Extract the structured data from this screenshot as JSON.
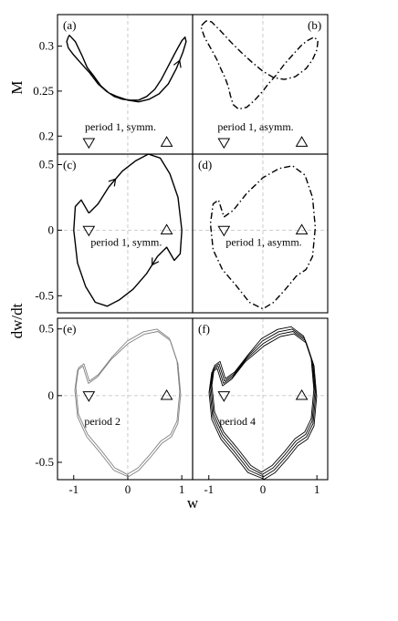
{
  "figure": {
    "x_label": "w",
    "y_label_top": "M",
    "y_label_bottom": "dw/dt"
  },
  "chart_data": [
    {
      "id": "a",
      "type": "line",
      "panel_label": "(a)",
      "caption": "period 1, symm.",
      "xlim": [
        -1.3,
        1.2
      ],
      "ylim": [
        0.18,
        0.335
      ],
      "yticks": [
        0.2,
        0.25,
        0.3
      ],
      "ytick_labels": [
        "0.2",
        "0.25",
        "0.3"
      ],
      "xticks": [],
      "style": "solid",
      "line_color": "#000000",
      "dashed_zero_lines": true,
      "markers": [
        {
          "symbol": "down-triangle",
          "x": -0.72,
          "y": 0.193
        },
        {
          "symbol": "up-triangle",
          "x": 0.72,
          "y": 0.193
        }
      ],
      "arrows": [
        {
          "at_index": 20,
          "direction": "backward"
        }
      ],
      "series": [
        {
          "repeat": 1,
          "points": [
            [
              -1.1,
              0.31
            ],
            [
              -1.13,
              0.305
            ],
            [
              -1.1,
              0.298
            ],
            [
              -1.0,
              0.29
            ],
            [
              -0.85,
              0.28
            ],
            [
              -0.7,
              0.27
            ],
            [
              -0.55,
              0.258
            ],
            [
              -0.4,
              0.25
            ],
            [
              -0.25,
              0.244
            ],
            [
              -0.1,
              0.241
            ],
            [
              0.05,
              0.24
            ],
            [
              0.2,
              0.24
            ],
            [
              0.35,
              0.244
            ],
            [
              0.5,
              0.252
            ],
            [
              0.62,
              0.263
            ],
            [
              0.75,
              0.278
            ],
            [
              0.88,
              0.293
            ],
            [
              1.0,
              0.306
            ],
            [
              1.06,
              0.31
            ],
            [
              1.08,
              0.305
            ],
            [
              1.02,
              0.293
            ],
            [
              0.9,
              0.275
            ],
            [
              0.75,
              0.258
            ],
            [
              0.58,
              0.247
            ],
            [
              0.4,
              0.241
            ],
            [
              0.2,
              0.238
            ],
            [
              0.0,
              0.24
            ],
            [
              -0.2,
              0.244
            ],
            [
              -0.35,
              0.248
            ],
            [
              -0.5,
              0.256
            ],
            [
              -0.62,
              0.266
            ],
            [
              -0.75,
              0.276
            ],
            [
              -0.85,
              0.29
            ],
            [
              -0.97,
              0.305
            ],
            [
              -1.08,
              0.312
            ],
            [
              -1.1,
              0.31
            ]
          ]
        }
      ]
    },
    {
      "id": "b",
      "type": "line",
      "panel_label": "(b)",
      "caption": "period 1, asymm.",
      "xlim": [
        -1.3,
        1.2
      ],
      "ylim": [
        0.18,
        0.335
      ],
      "yticks": [],
      "ytick_labels": [],
      "xticks": [],
      "style": "dashdot",
      "line_color": "#000000",
      "dashed_zero_lines": true,
      "markers": [
        {
          "symbol": "down-triangle",
          "x": -0.72,
          "y": 0.193
        },
        {
          "symbol": "up-triangle",
          "x": 0.72,
          "y": 0.193
        }
      ],
      "arrows": [],
      "series": [
        {
          "repeat": 1,
          "points": [
            [
              -1.05,
              0.328
            ],
            [
              -1.15,
              0.322
            ],
            [
              -1.08,
              0.31
            ],
            [
              -0.95,
              0.296
            ],
            [
              -0.85,
              0.285
            ],
            [
              -0.78,
              0.275
            ],
            [
              -0.7,
              0.265
            ],
            [
              -0.64,
              0.255
            ],
            [
              -0.6,
              0.245
            ],
            [
              -0.55,
              0.235
            ],
            [
              -0.45,
              0.23
            ],
            [
              -0.3,
              0.232
            ],
            [
              -0.15,
              0.24
            ],
            [
              0.0,
              0.25
            ],
            [
              0.1,
              0.258
            ],
            [
              0.25,
              0.268
            ],
            [
              0.4,
              0.28
            ],
            [
              0.55,
              0.29
            ],
            [
              0.7,
              0.3
            ],
            [
              0.82,
              0.306
            ],
            [
              0.95,
              0.31
            ],
            [
              1.02,
              0.306
            ],
            [
              1.0,
              0.296
            ],
            [
              0.92,
              0.285
            ],
            [
              0.8,
              0.275
            ],
            [
              0.6,
              0.266
            ],
            [
              0.4,
              0.263
            ],
            [
              0.2,
              0.265
            ],
            [
              0.0,
              0.272
            ],
            [
              -0.2,
              0.282
            ],
            [
              -0.4,
              0.293
            ],
            [
              -0.6,
              0.305
            ],
            [
              -0.8,
              0.318
            ],
            [
              -0.95,
              0.327
            ],
            [
              -1.05,
              0.328
            ]
          ]
        }
      ]
    },
    {
      "id": "c",
      "type": "line",
      "panel_label": "(c)",
      "caption": "period 1, symm.",
      "xlim": [
        -1.3,
        1.2
      ],
      "ylim": [
        -0.63,
        0.58
      ],
      "yticks": [
        0.5,
        0,
        -0.5
      ],
      "ytick_labels": [
        "0.5",
        "0",
        "-0.5"
      ],
      "xticks": [],
      "style": "solid",
      "line_color": "#000000",
      "dashed_zero_lines": true,
      "markers": [
        {
          "symbol": "down-triangle",
          "x": -0.72,
          "y": 0.0
        },
        {
          "symbol": "up-triangle",
          "x": 0.72,
          "y": 0.0
        }
      ],
      "arrows": [
        {
          "at_index": 2,
          "direction": "forward"
        },
        {
          "at_index": 13,
          "direction": "forward"
        }
      ],
      "series": [
        {
          "repeat": 1,
          "points": [
            [
              -0.72,
              0.13
            ],
            [
              -0.55,
              0.2
            ],
            [
              -0.35,
              0.33
            ],
            [
              -0.1,
              0.45
            ],
            [
              0.15,
              0.53
            ],
            [
              0.38,
              0.58
            ],
            [
              0.6,
              0.55
            ],
            [
              0.78,
              0.43
            ],
            [
              0.93,
              0.25
            ],
            [
              1.0,
              0.0
            ],
            [
              0.97,
              -0.18
            ],
            [
              0.86,
              -0.23
            ],
            [
              0.72,
              -0.13
            ],
            [
              0.55,
              -0.2
            ],
            [
              0.35,
              -0.33
            ],
            [
              0.1,
              -0.45
            ],
            [
              -0.15,
              -0.53
            ],
            [
              -0.38,
              -0.58
            ],
            [
              -0.6,
              -0.55
            ],
            [
              -0.78,
              -0.43
            ],
            [
              -0.93,
              -0.25
            ],
            [
              -1.0,
              0.0
            ],
            [
              -0.97,
              0.18
            ],
            [
              -0.86,
              0.23
            ],
            [
              -0.72,
              0.13
            ]
          ]
        }
      ]
    },
    {
      "id": "d",
      "type": "line",
      "panel_label": "(d)",
      "caption": "period 1, asymm.",
      "xlim": [
        -1.3,
        1.2
      ],
      "ylim": [
        -0.63,
        0.58
      ],
      "yticks": [],
      "ytick_labels": [],
      "xticks": [],
      "style": "dashdot",
      "line_color": "#000000",
      "dashed_zero_lines": true,
      "markers": [
        {
          "symbol": "down-triangle",
          "x": -0.72,
          "y": 0.0
        },
        {
          "symbol": "up-triangle",
          "x": 0.72,
          "y": 0.0
        }
      ],
      "arrows": [],
      "series": [
        {
          "repeat": 1,
          "points": [
            [
              -0.72,
              0.1
            ],
            [
              -0.55,
              0.15
            ],
            [
              -0.3,
              0.28
            ],
            [
              0.0,
              0.4
            ],
            [
              0.3,
              0.47
            ],
            [
              0.55,
              0.49
            ],
            [
              0.78,
              0.42
            ],
            [
              0.92,
              0.25
            ],
            [
              0.97,
              0.02
            ],
            [
              0.92,
              -0.2
            ],
            [
              0.8,
              -0.3
            ],
            [
              0.62,
              -0.35
            ],
            [
              0.42,
              -0.45
            ],
            [
              0.2,
              -0.55
            ],
            [
              0.0,
              -0.6
            ],
            [
              -0.25,
              -0.55
            ],
            [
              -0.5,
              -0.42
            ],
            [
              -0.75,
              -0.3
            ],
            [
              -0.92,
              -0.15
            ],
            [
              -0.97,
              0.05
            ],
            [
              -0.92,
              0.2
            ],
            [
              -0.82,
              0.23
            ],
            [
              -0.72,
              0.1
            ]
          ]
        }
      ]
    },
    {
      "id": "e",
      "type": "line",
      "panel_label": "(e)",
      "caption": "period 2",
      "xlim": [
        -1.3,
        1.2
      ],
      "ylim": [
        -0.63,
        0.58
      ],
      "yticks": [
        0.5,
        0,
        -0.5
      ],
      "ytick_labels": [
        "0.5",
        "0",
        "-0.5"
      ],
      "xticks": [
        -1,
        0,
        1
      ],
      "xtick_labels": [
        "-1",
        "0",
        "1"
      ],
      "style": "solid",
      "line_color": "#808080",
      "dashed_zero_lines": true,
      "markers": [
        {
          "symbol": "down-triangle",
          "x": -0.72,
          "y": 0.0
        },
        {
          "symbol": "up-triangle",
          "x": 0.72,
          "y": 0.0
        }
      ],
      "arrows": [],
      "series": [
        {
          "repeat": 2,
          "points": [
            [
              -0.72,
              0.1
            ],
            [
              -0.55,
              0.15
            ],
            [
              -0.3,
              0.28
            ],
            [
              0.0,
              0.4
            ],
            [
              0.3,
              0.47
            ],
            [
              0.55,
              0.49
            ],
            [
              0.78,
              0.42
            ],
            [
              0.92,
              0.25
            ],
            [
              0.97,
              0.02
            ],
            [
              0.92,
              -0.2
            ],
            [
              0.8,
              -0.3
            ],
            [
              0.62,
              -0.35
            ],
            [
              0.42,
              -0.45
            ],
            [
              0.2,
              -0.55
            ],
            [
              0.0,
              -0.6
            ],
            [
              -0.25,
              -0.55
            ],
            [
              -0.5,
              -0.42
            ],
            [
              -0.75,
              -0.3
            ],
            [
              -0.92,
              -0.15
            ],
            [
              -0.97,
              0.05
            ],
            [
              -0.92,
              0.2
            ],
            [
              -0.82,
              0.23
            ],
            [
              -0.72,
              0.1
            ]
          ]
        }
      ]
    },
    {
      "id": "f",
      "type": "line",
      "panel_label": "(f)",
      "caption": "period 4",
      "xlim": [
        -1.3,
        1.2
      ],
      "ylim": [
        -0.63,
        0.58
      ],
      "yticks": [],
      "ytick_labels": [],
      "xticks": [
        -1,
        0,
        1
      ],
      "xtick_labels": [
        "-1",
        "0",
        "1"
      ],
      "style": "solid",
      "line_color": "#000000",
      "dashed_zero_lines": true,
      "markers": [
        {
          "symbol": "down-triangle",
          "x": -0.72,
          "y": 0.0
        },
        {
          "symbol": "up-triangle",
          "x": 0.72,
          "y": 0.0
        }
      ],
      "arrows": [],
      "series": [
        {
          "repeat": 4,
          "points": [
            [
              -0.72,
              0.1
            ],
            [
              -0.55,
              0.15
            ],
            [
              -0.3,
              0.28
            ],
            [
              0.0,
              0.4
            ],
            [
              0.3,
              0.47
            ],
            [
              0.55,
              0.49
            ],
            [
              0.78,
              0.42
            ],
            [
              0.92,
              0.25
            ],
            [
              0.97,
              0.02
            ],
            [
              0.92,
              -0.2
            ],
            [
              0.8,
              -0.3
            ],
            [
              0.62,
              -0.35
            ],
            [
              0.42,
              -0.45
            ],
            [
              0.2,
              -0.55
            ],
            [
              0.0,
              -0.6
            ],
            [
              -0.25,
              -0.55
            ],
            [
              -0.5,
              -0.42
            ],
            [
              -0.75,
              -0.3
            ],
            [
              -0.92,
              -0.15
            ],
            [
              -0.97,
              0.05
            ],
            [
              -0.92,
              0.2
            ],
            [
              -0.82,
              0.23
            ],
            [
              -0.72,
              0.1
            ]
          ]
        }
      ]
    }
  ]
}
